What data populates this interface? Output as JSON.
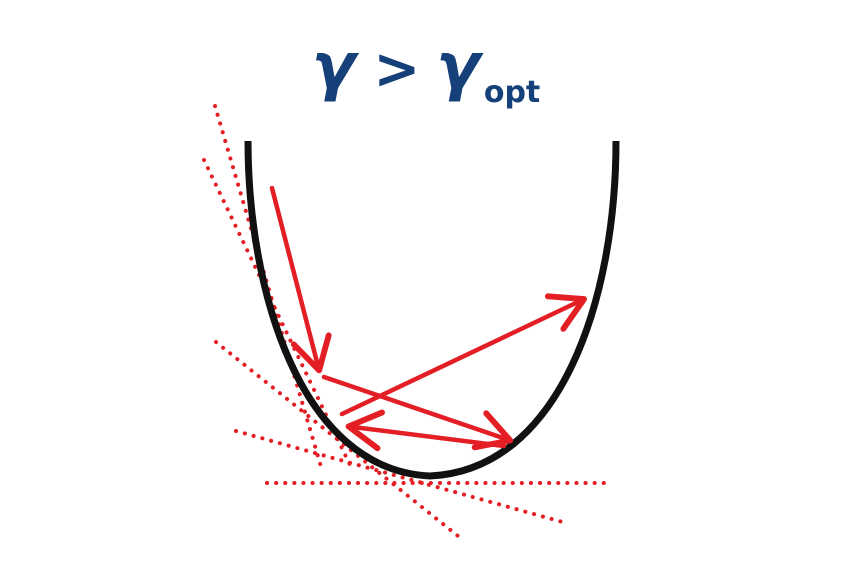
{
  "title": {
    "symbol": "γ",
    "operator": ">",
    "rhs_symbol": "γ",
    "rhs_subscript": "opt"
  },
  "colors": {
    "title": "#16407a",
    "curve": "#111111",
    "arrow": "#e31e24",
    "tangent": "#e31e24",
    "background": "#ffffff"
  },
  "description_terms": {
    "steps": 5,
    "tangent_lines": 5
  }
}
